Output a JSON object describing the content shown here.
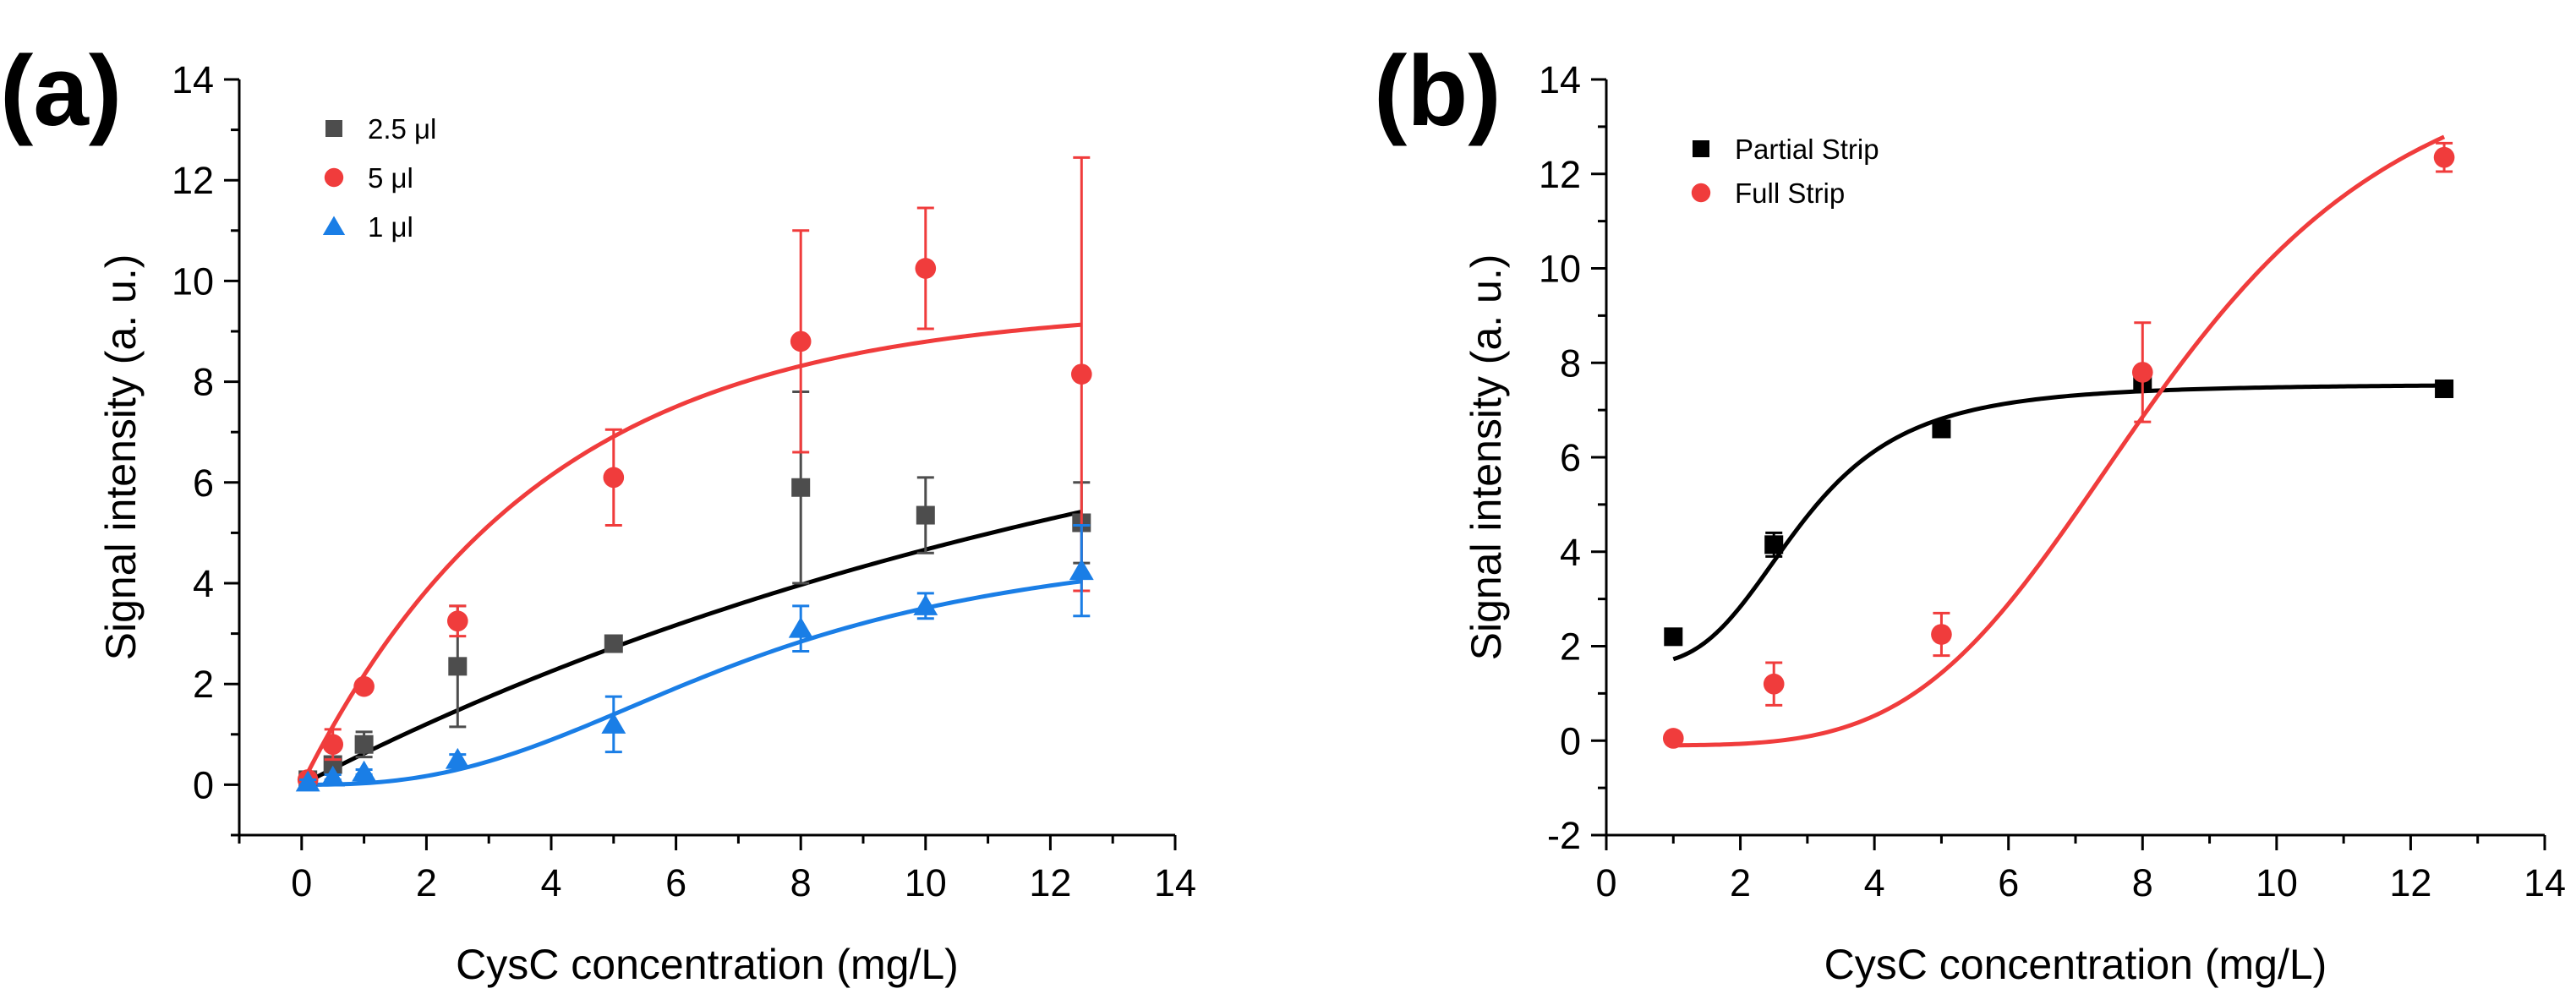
{
  "colors": {
    "black": "#000000",
    "gray": "#4d4d4d",
    "red": "#f03c3c",
    "blue": "#1a7ee6"
  },
  "chart_data": [
    {
      "panel_label": "(a)",
      "type": "scatter",
      "xlabel": "CysC concentration (mg/L)",
      "ylabel": "Signal intensity (a. u.)",
      "xlim": [
        -1,
        14
      ],
      "ylim": [
        -1,
        14
      ],
      "xticks": [
        "0",
        "2",
        "4",
        "6",
        "8",
        "10",
        "12",
        "14"
      ],
      "yticks": [
        "0",
        "2",
        "4",
        "6",
        "8",
        "10",
        "12",
        "14"
      ],
      "legend_position": "top-left",
      "series": [
        {
          "name": "2.5 μl",
          "marker": "square",
          "color": "#4d4d4d",
          "fit_color": "#000000",
          "x": [
            0.1,
            0.5,
            1,
            2.5,
            5,
            8,
            10,
            12.5
          ],
          "y": [
            0.1,
            0.4,
            0.8,
            2.35,
            2.8,
            5.9,
            5.35,
            5.2
          ],
          "err": [
            0.05,
            0.15,
            0.25,
            1.2,
            0.1,
            1.9,
            0.75,
            0.8
          ],
          "fit": {
            "model": "1-exp",
            "a": 9.5,
            "k": 0.0676
          }
        },
        {
          "name": "5 μl",
          "marker": "circle",
          "color": "#f03c3c",
          "fit_color": "#f03c3c",
          "x": [
            0.1,
            0.5,
            1,
            2.5,
            5,
            8,
            10,
            12.5
          ],
          "y": [
            0.1,
            0.8,
            1.95,
            3.25,
            6.1,
            8.8,
            10.25,
            8.15
          ],
          "err": [
            0.05,
            0.3,
            0.1,
            0.3,
            0.95,
            2.2,
            1.2,
            4.3
          ],
          "fit": {
            "model": "1-exp",
            "a": 9.5,
            "k": 0.26
          }
        },
        {
          "name": "1 μl",
          "marker": "triangle",
          "color": "#1a7ee6",
          "fit_color": "#1a7ee6",
          "x": [
            0.1,
            0.5,
            1,
            2.5,
            5,
            8,
            10,
            12.5
          ],
          "y": [
            0.05,
            0.15,
            0.25,
            0.5,
            1.2,
            3.1,
            3.55,
            4.25
          ],
          "err": [
            0.05,
            0.05,
            0.05,
            0.1,
            0.55,
            0.45,
            0.25,
            0.9
          ],
          "fit": {
            "model": "logistic",
            "A1": 0,
            "A2": 5.0,
            "x0": 7.2,
            "p": 2.6
          }
        }
      ]
    },
    {
      "panel_label": "(b)",
      "type": "scatter",
      "xlabel": "CysC concentration (mg/L)",
      "ylabel": "Signal intensity (a. u.)",
      "xlim": [
        0,
        14
      ],
      "ylim": [
        -2,
        14
      ],
      "xticks": [
        "0",
        "2",
        "4",
        "6",
        "8",
        "10",
        "12",
        "14"
      ],
      "yticks": [
        "-2",
        "0",
        "2",
        "4",
        "6",
        "8",
        "10",
        "12",
        "14"
      ],
      "legend_position": "top-left",
      "series": [
        {
          "name": "Partial Strip",
          "marker": "square",
          "color": "#000000",
          "fit_color": "#000000",
          "x": [
            1,
            2.5,
            5,
            8,
            12.5
          ],
          "y": [
            2.2,
            4.15,
            6.6,
            7.6,
            7.45
          ],
          "err": [
            0.05,
            0.25,
            0.15,
            0.1,
            0.1
          ],
          "fit": {
            "model": "logistic",
            "A1": 1.6,
            "A2": 7.55,
            "x0": 2.9,
            "p": 3.6
          }
        },
        {
          "name": "Full Strip",
          "marker": "circle",
          "color": "#f03c3c",
          "fit_color": "#f03c3c",
          "x": [
            1,
            2.5,
            5,
            8,
            12.5
          ],
          "y": [
            0.05,
            1.2,
            2.25,
            7.8,
            12.35
          ],
          "err": [
            0.05,
            0.45,
            0.45,
            1.05,
            0.3
          ],
          "fit": {
            "model": "logistic",
            "A1": -0.1,
            "A2": 15.0,
            "x0": 8.3,
            "p": 4.3
          }
        }
      ]
    }
  ]
}
